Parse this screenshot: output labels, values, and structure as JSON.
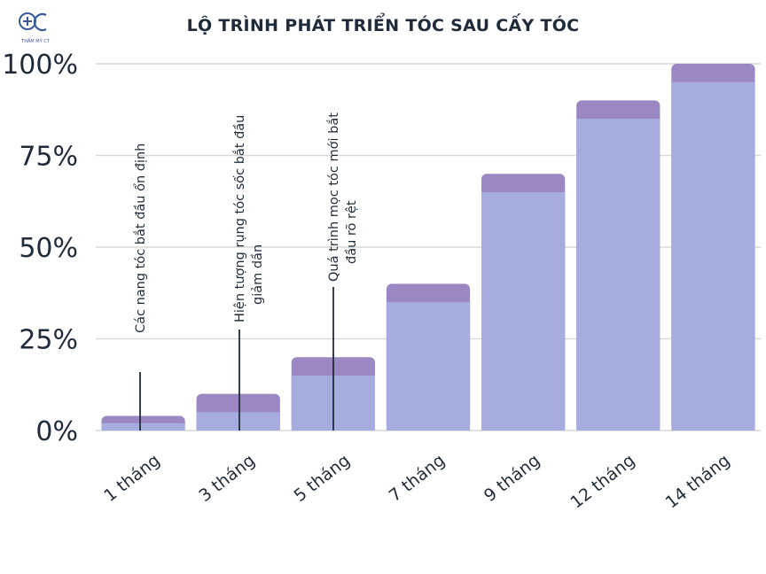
{
  "brand": {
    "logo_text": "THẨM MỸ CT",
    "logo_icon": "plus-circle-logo-icon",
    "accent": "#3a5a9a"
  },
  "chart_data": {
    "type": "bar",
    "title": "LỘ TRÌNH PHÁT TRIỂN TÓC SAU CẤY TÓC",
    "xlabel": "",
    "ylabel": "",
    "ylim": [
      0,
      100
    ],
    "y_ticks": [
      "0%",
      "25%",
      "50%",
      "75%",
      "100%"
    ],
    "y_tick_values": [
      0,
      25,
      50,
      75,
      100
    ],
    "grid": true,
    "categories": [
      "1 tháng",
      "3 tháng",
      "5 tháng",
      "7 tháng",
      "9 tháng",
      "12 tháng",
      "14 tháng"
    ],
    "values": [
      4,
      10,
      20,
      40,
      70,
      90,
      100
    ],
    "inner_values": [
      2,
      5,
      15,
      35,
      65,
      85,
      95
    ],
    "colors": {
      "bar_top": "#9b88c2",
      "bar_body": "#a7acdf",
      "grid": "#d9d9d9",
      "text": "#1f2b3a"
    },
    "annotations": [
      {
        "category_index": 0,
        "lines": [
          "Các nang tóc bắt đầu ổn định"
        ]
      },
      {
        "category_index": 1,
        "lines": [
          "Hiện tượng rụng tóc sốc bắt đầu",
          "giảm dần"
        ]
      },
      {
        "category_index": 2,
        "lines": [
          "Quá trình mọc tóc mới bắt",
          "đầu rõ rệt"
        ]
      }
    ]
  }
}
